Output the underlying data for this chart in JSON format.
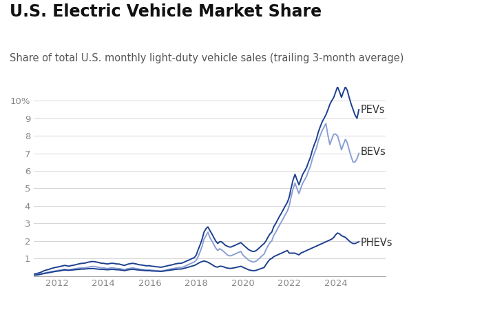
{
  "title": "U.S. Electric Vehicle Market Share",
  "subtitle": "Share of total U.S. monthly light-duty vehicle sales (trailing 3-month average)",
  "title_fontsize": 17,
  "subtitle_fontsize": 10.5,
  "background_color": "#ffffff",
  "ylim": [
    0,
    10.8
  ],
  "ytick_vals": [
    1,
    2,
    3,
    4,
    5,
    6,
    7,
    8,
    9,
    10
  ],
  "grid_color": "#d5d5d5",
  "line_pev_color": "#1c3f8f",
  "line_bev_color": "#8a9fd4",
  "line_phev_color": "#1c3f8f",
  "label_color": "#333333",
  "label_fontsize": 10.5,
  "xmin": 2011.0,
  "xmax": 2025.3,
  "xticks": [
    2012,
    2014,
    2016,
    2018,
    2020,
    2022,
    2024
  ],
  "pev_x": [
    2011.0,
    2011.08,
    2011.17,
    2011.25,
    2011.33,
    2011.42,
    2011.5,
    2011.58,
    2011.67,
    2011.75,
    2011.83,
    2011.92,
    2012.0,
    2012.08,
    2012.17,
    2012.25,
    2012.33,
    2012.42,
    2012.5,
    2012.58,
    2012.67,
    2012.75,
    2012.83,
    2012.92,
    2013.0,
    2013.08,
    2013.17,
    2013.25,
    2013.33,
    2013.42,
    2013.5,
    2013.58,
    2013.67,
    2013.75,
    2013.83,
    2013.92,
    2014.0,
    2014.08,
    2014.17,
    2014.25,
    2014.33,
    2014.42,
    2014.5,
    2014.58,
    2014.67,
    2014.75,
    2014.83,
    2014.92,
    2015.0,
    2015.08,
    2015.17,
    2015.25,
    2015.33,
    2015.42,
    2015.5,
    2015.58,
    2015.67,
    2015.75,
    2015.83,
    2015.92,
    2016.0,
    2016.08,
    2016.17,
    2016.25,
    2016.33,
    2016.42,
    2016.5,
    2016.58,
    2016.67,
    2016.75,
    2016.83,
    2016.92,
    2017.0,
    2017.08,
    2017.17,
    2017.25,
    2017.33,
    2017.42,
    2017.5,
    2017.58,
    2017.67,
    2017.75,
    2017.83,
    2017.92,
    2018.0,
    2018.08,
    2018.17,
    2018.25,
    2018.33,
    2018.42,
    2018.5,
    2018.58,
    2018.67,
    2018.75,
    2018.83,
    2018.92,
    2019.0,
    2019.08,
    2019.17,
    2019.25,
    2019.33,
    2019.42,
    2019.5,
    2019.58,
    2019.67,
    2019.75,
    2019.83,
    2019.92,
    2020.0,
    2020.08,
    2020.17,
    2020.25,
    2020.33,
    2020.42,
    2020.5,
    2020.58,
    2020.67,
    2020.75,
    2020.83,
    2020.92,
    2021.0,
    2021.08,
    2021.17,
    2021.25,
    2021.33,
    2021.42,
    2021.5,
    2021.58,
    2021.67,
    2021.75,
    2021.83,
    2021.92,
    2022.0,
    2022.08,
    2022.17,
    2022.25,
    2022.33,
    2022.42,
    2022.5,
    2022.58,
    2022.67,
    2022.75,
    2022.83,
    2022.92,
    2023.0,
    2023.08,
    2023.17,
    2023.25,
    2023.33,
    2023.42,
    2023.5,
    2023.58,
    2023.67,
    2023.75,
    2023.83,
    2023.92,
    2024.0,
    2024.08,
    2024.17,
    2024.25,
    2024.33,
    2024.42,
    2024.5,
    2024.58,
    2024.67,
    2024.75,
    2024.83,
    2024.92,
    2025.0
  ],
  "pev_y": [
    0.1,
    0.12,
    0.15,
    0.18,
    0.22,
    0.28,
    0.32,
    0.35,
    0.38,
    0.42,
    0.45,
    0.48,
    0.5,
    0.52,
    0.55,
    0.58,
    0.6,
    0.58,
    0.55,
    0.58,
    0.6,
    0.62,
    0.65,
    0.68,
    0.7,
    0.72,
    0.72,
    0.75,
    0.78,
    0.8,
    0.82,
    0.82,
    0.8,
    0.78,
    0.75,
    0.72,
    0.72,
    0.7,
    0.68,
    0.7,
    0.72,
    0.72,
    0.7,
    0.68,
    0.68,
    0.65,
    0.62,
    0.6,
    0.65,
    0.68,
    0.7,
    0.72,
    0.7,
    0.68,
    0.65,
    0.63,
    0.62,
    0.6,
    0.58,
    0.58,
    0.58,
    0.55,
    0.55,
    0.52,
    0.52,
    0.5,
    0.5,
    0.52,
    0.55,
    0.58,
    0.6,
    0.62,
    0.65,
    0.68,
    0.7,
    0.72,
    0.72,
    0.75,
    0.8,
    0.85,
    0.9,
    0.95,
    1.0,
    1.05,
    1.2,
    1.5,
    1.8,
    2.1,
    2.5,
    2.7,
    2.8,
    2.6,
    2.4,
    2.2,
    2.0,
    1.85,
    1.95,
    1.95,
    1.85,
    1.75,
    1.7,
    1.65,
    1.65,
    1.7,
    1.75,
    1.8,
    1.85,
    1.9,
    1.8,
    1.7,
    1.6,
    1.5,
    1.45,
    1.4,
    1.4,
    1.45,
    1.55,
    1.65,
    1.75,
    1.85,
    2.0,
    2.2,
    2.4,
    2.5,
    2.8,
    3.0,
    3.2,
    3.4,
    3.6,
    3.8,
    4.0,
    4.2,
    4.5,
    5.0,
    5.5,
    5.8,
    5.5,
    5.2,
    5.5,
    5.8,
    6.0,
    6.2,
    6.5,
    6.8,
    7.2,
    7.5,
    7.8,
    8.2,
    8.5,
    8.8,
    9.0,
    9.2,
    9.5,
    9.8,
    10.0,
    10.2,
    10.5,
    10.8,
    10.5,
    10.2,
    10.5,
    10.8,
    10.6,
    10.2,
    9.8,
    9.5,
    9.2,
    9.0,
    9.5
  ],
  "bev_y": [
    0.05,
    0.06,
    0.08,
    0.1,
    0.12,
    0.15,
    0.18,
    0.2,
    0.22,
    0.24,
    0.26,
    0.28,
    0.3,
    0.32,
    0.34,
    0.36,
    0.38,
    0.36,
    0.34,
    0.36,
    0.38,
    0.4,
    0.42,
    0.44,
    0.45,
    0.46,
    0.46,
    0.48,
    0.5,
    0.52,
    0.54,
    0.54,
    0.52,
    0.5,
    0.48,
    0.46,
    0.46,
    0.44,
    0.42,
    0.44,
    0.46,
    0.46,
    0.44,
    0.42,
    0.42,
    0.4,
    0.38,
    0.36,
    0.4,
    0.42,
    0.44,
    0.46,
    0.44,
    0.42,
    0.4,
    0.38,
    0.37,
    0.36,
    0.34,
    0.34,
    0.34,
    0.32,
    0.32,
    0.3,
    0.3,
    0.28,
    0.28,
    0.3,
    0.33,
    0.36,
    0.38,
    0.4,
    0.42,
    0.44,
    0.46,
    0.48,
    0.48,
    0.5,
    0.55,
    0.6,
    0.65,
    0.7,
    0.75,
    0.8,
    0.9,
    1.1,
    1.4,
    1.7,
    2.1,
    2.3,
    2.5,
    2.2,
    2.0,
    1.8,
    1.6,
    1.45,
    1.55,
    1.5,
    1.4,
    1.3,
    1.2,
    1.15,
    1.15,
    1.2,
    1.25,
    1.3,
    1.35,
    1.4,
    1.2,
    1.1,
    1.0,
    0.9,
    0.85,
    0.8,
    0.8,
    0.85,
    0.95,
    1.05,
    1.15,
    1.25,
    1.5,
    1.7,
    1.9,
    2.0,
    2.3,
    2.5,
    2.7,
    2.9,
    3.1,
    3.3,
    3.5,
    3.7,
    4.0,
    4.5,
    5.0,
    5.3,
    5.0,
    4.7,
    5.0,
    5.3,
    5.5,
    5.7,
    6.0,
    6.3,
    6.7,
    7.0,
    7.3,
    7.7,
    8.0,
    8.3,
    8.5,
    8.7,
    8.0,
    7.5,
    7.8,
    8.1,
    8.1,
    8.0,
    7.6,
    7.2,
    7.5,
    7.8,
    7.6,
    7.2,
    6.8,
    6.5,
    6.5,
    6.7,
    7.0
  ],
  "phev_y": [
    0.04,
    0.05,
    0.06,
    0.08,
    0.1,
    0.13,
    0.15,
    0.17,
    0.19,
    0.21,
    0.23,
    0.25,
    0.27,
    0.28,
    0.3,
    0.32,
    0.34,
    0.33,
    0.32,
    0.33,
    0.34,
    0.35,
    0.36,
    0.37,
    0.38,
    0.39,
    0.39,
    0.4,
    0.41,
    0.42,
    0.42,
    0.42,
    0.4,
    0.39,
    0.38,
    0.37,
    0.37,
    0.36,
    0.35,
    0.36,
    0.37,
    0.37,
    0.36,
    0.35,
    0.35,
    0.33,
    0.32,
    0.3,
    0.33,
    0.35,
    0.37,
    0.38,
    0.37,
    0.35,
    0.34,
    0.33,
    0.32,
    0.31,
    0.3,
    0.3,
    0.3,
    0.28,
    0.28,
    0.27,
    0.27,
    0.26,
    0.26,
    0.27,
    0.29,
    0.31,
    0.32,
    0.34,
    0.35,
    0.37,
    0.38,
    0.39,
    0.39,
    0.41,
    0.44,
    0.47,
    0.5,
    0.53,
    0.56,
    0.6,
    0.65,
    0.72,
    0.78,
    0.82,
    0.85,
    0.82,
    0.78,
    0.72,
    0.65,
    0.58,
    0.52,
    0.5,
    0.55,
    0.55,
    0.52,
    0.48,
    0.45,
    0.43,
    0.43,
    0.45,
    0.47,
    0.5,
    0.52,
    0.55,
    0.5,
    0.45,
    0.4,
    0.35,
    0.32,
    0.3,
    0.3,
    0.32,
    0.36,
    0.4,
    0.44,
    0.48,
    0.65,
    0.8,
    0.95,
    1.0,
    1.1,
    1.15,
    1.2,
    1.25,
    1.3,
    1.35,
    1.4,
    1.45,
    1.3,
    1.3,
    1.3,
    1.3,
    1.25,
    1.2,
    1.3,
    1.35,
    1.4,
    1.45,
    1.5,
    1.55,
    1.6,
    1.65,
    1.7,
    1.75,
    1.8,
    1.85,
    1.9,
    1.95,
    2.0,
    2.05,
    2.1,
    2.2,
    2.35,
    2.45,
    2.4,
    2.3,
    2.25,
    2.2,
    2.1,
    2.0,
    1.9,
    1.85,
    1.85,
    1.9,
    1.95
  ]
}
